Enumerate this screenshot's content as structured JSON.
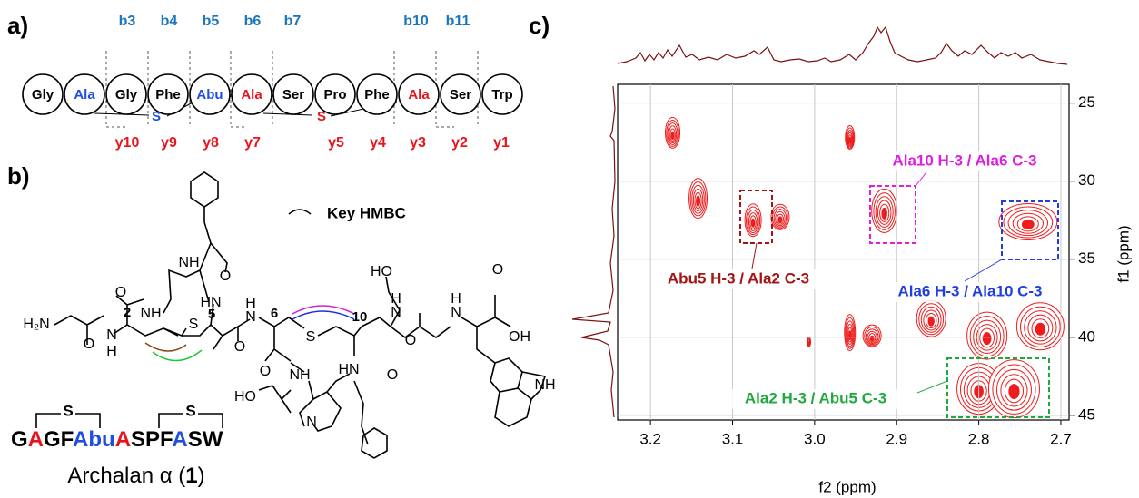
{
  "panel_a": {
    "label": "a)",
    "residues": [
      {
        "text": "Gly",
        "color": "#000000"
      },
      {
        "text": "Ala",
        "color": "#1f4fe0"
      },
      {
        "text": "Gly",
        "color": "#000000"
      },
      {
        "text": "Phe",
        "color": "#000000"
      },
      {
        "text": "Abu",
        "color": "#1f4fe0"
      },
      {
        "text": "Ala",
        "color": "#e8141c"
      },
      {
        "text": "Ser",
        "color": "#000000"
      },
      {
        "text": "Pro",
        "color": "#000000"
      },
      {
        "text": "Phe",
        "color": "#000000"
      },
      {
        "text": "Ala",
        "color": "#e8141c"
      },
      {
        "text": "Ser",
        "color": "#000000"
      },
      {
        "text": "Trp",
        "color": "#000000"
      }
    ],
    "b_ions": [
      "b3",
      "b4",
      "b5",
      "b6",
      "b7",
      "b10",
      "b11"
    ],
    "b_color": "#1b75bc",
    "y_ions": [
      "y10",
      "y9",
      "y8",
      "y7",
      "y5",
      "y4",
      "y3",
      "y2",
      "y1"
    ],
    "y_color": "#e8141c",
    "bridges": [
      {
        "text": "S",
        "color": "#1f4fe0"
      },
      {
        "text": "S",
        "color": "#e8141c"
      }
    ]
  },
  "panel_b": {
    "label": "b)",
    "legend": "Key HMBC",
    "atoms": [
      "O",
      "NH",
      "O",
      "H₂N",
      "N",
      "H",
      "2",
      "S",
      "5",
      "NH",
      "O",
      "HN",
      "O",
      "H",
      "N",
      "6",
      "S",
      "10",
      "O",
      "NH",
      "HO",
      "N",
      "HN",
      "O",
      "HO",
      "H",
      "N",
      "O",
      "OH",
      "H",
      "N",
      "O",
      "NH"
    ],
    "sequence": [
      {
        "text": "G",
        "color": "#000000"
      },
      {
        "text": "A",
        "color": "#e8141c"
      },
      {
        "text": "GF",
        "color": "#000000"
      },
      {
        "text": "Abu",
        "color": "#1f4fe0"
      },
      {
        "text": "A",
        "color": "#e8141c"
      },
      {
        "text": "SPF",
        "color": "#000000"
      },
      {
        "text": "A",
        "color": "#1f4fe0"
      },
      {
        "text": "SW",
        "color": "#000000"
      }
    ],
    "bridges": [
      "S",
      "S"
    ],
    "caption": [
      "Archalan α (",
      "1",
      ")"
    ]
  },
  "chart_data": {
    "type": "contour",
    "label": "c)",
    "xlabel": "f2 (ppm)",
    "ylabel": "f1 (ppm)",
    "xlim": [
      3.24,
      2.69
    ],
    "ylim": [
      23.8,
      45.3
    ],
    "xticks": [
      3.2,
      3.1,
      {
        "value": 3,
        "label": "3.0"
      },
      2.9,
      2.8,
      2.7
    ],
    "yticks": [
      25,
      30,
      35,
      40,
      45
    ],
    "grid": true,
    "color": "#ee1c1c",
    "peaks": {
      "x": [
        3.173,
        2.957,
        3.142,
        3.075,
        3.042,
        2.915,
        2.74,
        2.957,
        3.007,
        2.93,
        2.858,
        2.79,
        2.725,
        2.8,
        2.757
      ],
      "y": [
        26.9,
        27.2,
        31.1,
        32.5,
        32.3,
        31.9,
        32.6,
        39.7,
        40.3,
        39.9,
        38.8,
        39.9,
        39.3,
        43.3,
        43.3
      ]
    },
    "annotations": [
      {
        "text": "Abu5 H-3 / Ala2 C-3",
        "color": "#a31515"
      },
      {
        "text": "Ala10 H-3 / Ala6 C-3",
        "color": "#e01ee0"
      },
      {
        "text": "Ala6 H-3 / Ala10 C-3",
        "color": "#1f3fe0"
      },
      {
        "text": "Ala2 H-3 / Abu5 C-3",
        "color": "#1fa83c"
      }
    ]
  }
}
